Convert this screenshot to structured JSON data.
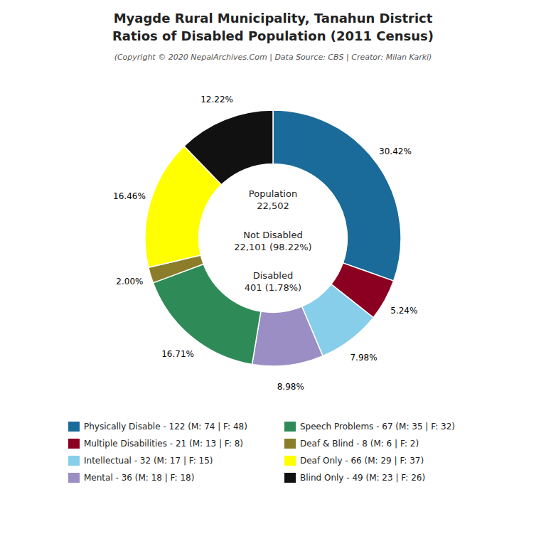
{
  "chart_data": {
    "type": "donut",
    "title": [
      "Myagde Rural Municipality, Tanahun District",
      "Ratios of Disabled Population (2011 Census)"
    ],
    "subtitle": "(Copyright © 2020 NepalArchives.Com | Data Source: CBS | Creator: Milan Karki)",
    "categories": [
      "Physically Disable - 122 (M: 74 | F: 48)",
      "Multiple Disabilities - 21 (M: 13 | F: 8)",
      "Intellectual - 32 (M: 17 | F: 15)",
      "Mental - 36 (M: 18 | F: 18)",
      "Speech Problems - 67 (M: 35 | F: 32)",
      "Deaf & Blind - 8 (M: 6 | F: 2)",
      "Deaf Only - 66 (M: 29 | F: 37)",
      "Blind Only - 49 (M: 23 | F: 26)"
    ],
    "values": [
      30.42,
      5.24,
      7.98,
      8.98,
      16.71,
      2.0,
      16.46,
      12.22
    ],
    "value_labels": [
      "30.42%",
      "5.24%",
      "7.98%",
      "8.98%",
      "16.71%",
      "2.00%",
      "16.46%",
      "12.22%"
    ],
    "colors": [
      "#1a6b9a",
      "#8b0020",
      "#87ceeb",
      "#9b8ec4",
      "#2e8b57",
      "#8b7d2a",
      "#ffff00",
      "#111111"
    ],
    "annotations": [
      [
        "Population",
        "22,502"
      ],
      [
        "Not Disabled",
        "22,101 (98.22%)"
      ],
      [
        "Disabled",
        "401 (1.78%)"
      ]
    ],
    "data_labels": true,
    "legend": "bottom"
  }
}
